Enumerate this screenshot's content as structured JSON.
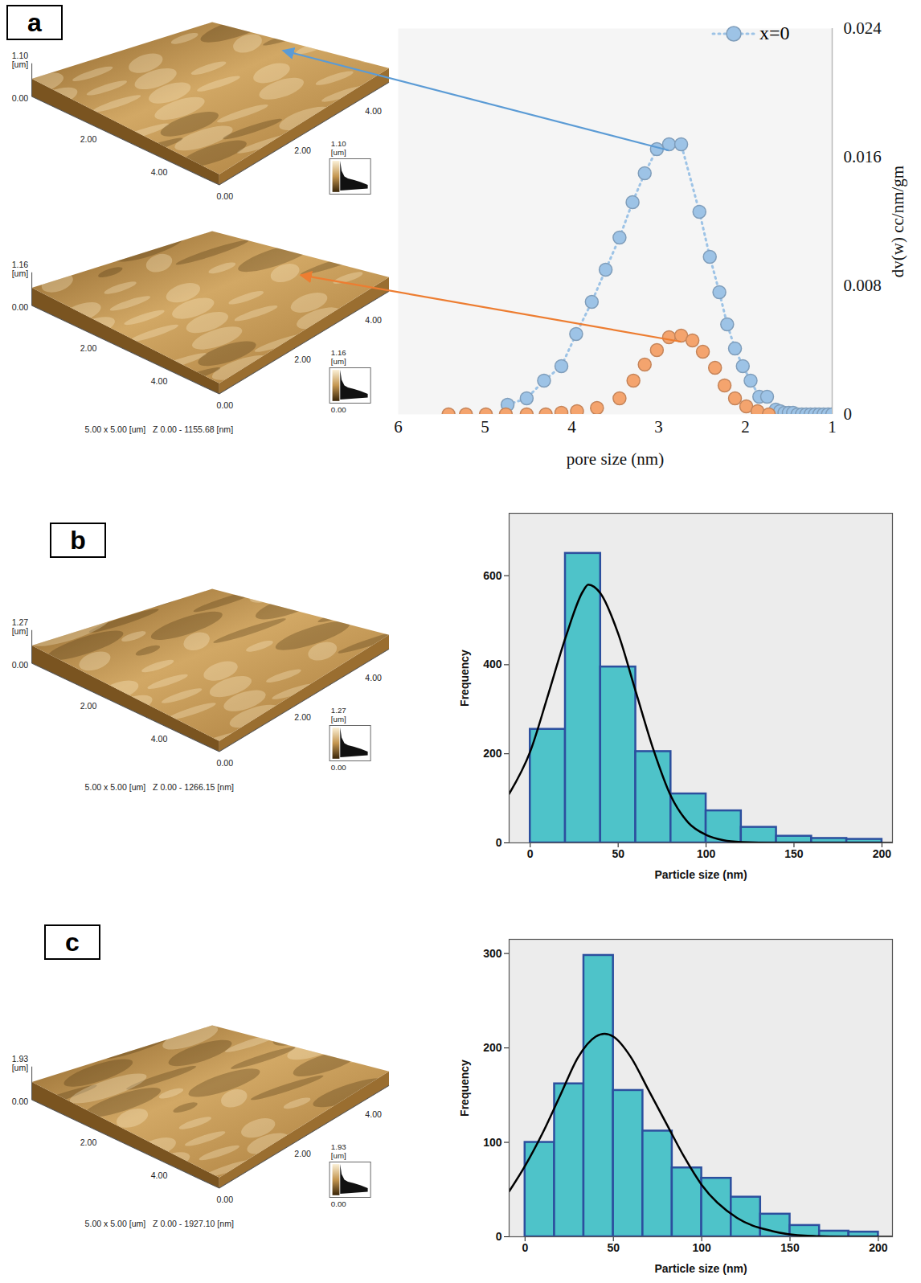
{
  "chart_data": [
    {
      "panel": "a",
      "type": "line",
      "x_label": "pore size (nm)",
      "y_label": "dv(w) cc/nm/gm",
      "xlim": [
        6,
        1
      ],
      "xticks": [
        6,
        5,
        4,
        3,
        2,
        1
      ],
      "ylim": [
        0,
        0.024
      ],
      "yticks": [
        0,
        0.008,
        0.016,
        0.024
      ],
      "legend": "top-right",
      "series": [
        {
          "name": "x=0",
          "color": "#9dc3e6",
          "marker": "circle",
          "line_style": "dotted",
          "x": [
            4.74,
            4.52,
            4.32,
            4.12,
            3.95,
            3.77,
            3.61,
            3.45,
            3.3,
            3.16,
            3.02,
            2.88,
            2.74,
            2.53,
            2.41,
            2.3,
            2.21,
            2.12,
            2.03,
            1.94,
            1.84,
            1.75,
            1.65,
            1.6,
            1.55,
            1.5,
            1.45,
            1.4,
            1.35,
            1.3,
            1.25,
            1.2,
            1.15,
            1.1,
            1.05,
            1.0
          ],
          "values": [
            0.0006,
            0.001,
            0.0021,
            0.003,
            0.005,
            0.007,
            0.009,
            0.011,
            0.0132,
            0.015,
            0.0165,
            0.0168,
            0.0168,
            0.0126,
            0.0098,
            0.0076,
            0.0056,
            0.0041,
            0.003,
            0.0021,
            0.0011,
            0.0011,
            0.0003,
            0.0002,
            0.0001,
            0.0001,
            0.0001,
            0,
            0,
            0,
            0,
            0,
            0,
            0,
            0,
            0
          ]
        },
        {
          "name": null,
          "color": "#f4a46e",
          "marker": "circle",
          "line_style": "none",
          "x": [
            5.42,
            5.22,
            4.99,
            4.76,
            4.52,
            4.3,
            4.12,
            3.94,
            3.71,
            3.45,
            3.29,
            3.16,
            3.02,
            2.88,
            2.74,
            2.61,
            2.49,
            2.35,
            2.24,
            2.12,
            1.99,
            1.86,
            1.73
          ],
          "values": [
            0,
            0,
            0,
            0,
            0,
            0,
            0.0001,
            0.0002,
            0.0004,
            0.001,
            0.0021,
            0.0031,
            0.004,
            0.0048,
            0.0049,
            0.0046,
            0.0039,
            0.0029,
            0.0018,
            0.001,
            0.0005,
            0.0002,
            0
          ]
        }
      ]
    },
    {
      "panel": "b",
      "type": "histogram",
      "x_label": "Particle size (nm)",
      "y_label": "Frequency",
      "xlim": [
        -12,
        206
      ],
      "xticks": [
        0,
        50,
        100,
        150,
        200
      ],
      "ylim": [
        0,
        740
      ],
      "yticks": [
        0,
        200,
        400,
        600
      ],
      "color": "#4ec3c9",
      "bins": [
        0,
        20,
        40,
        60,
        80,
        100,
        120,
        140,
        160,
        180,
        200
      ],
      "values": [
        255,
        650,
        395,
        205,
        110,
        72,
        35,
        15,
        10,
        8
      ],
      "curve": {
        "color": "#000000",
        "x": [
          -12,
          0,
          10,
          20,
          30,
          33,
          40,
          50,
          60,
          70,
          80,
          90,
          100,
          110,
          120,
          140,
          170,
          206
        ],
        "values": [
          110,
          205,
          330,
          460,
          565,
          580,
          560,
          470,
          340,
          210,
          105,
          45,
          18,
          6,
          2,
          0,
          0,
          0
        ]
      }
    },
    {
      "panel": "c",
      "type": "histogram",
      "x_label": "Particle size (nm)",
      "y_label": "Frequency",
      "xlim": [
        -9,
        208
      ],
      "xticks": [
        0,
        50,
        100,
        150,
        200
      ],
      "ylim": [
        0,
        315
      ],
      "yticks": [
        0,
        100,
        200,
        300
      ],
      "color": "#4ec3c9",
      "bins": [
        0,
        16.7,
        33.3,
        50,
        66.7,
        83.3,
        100,
        116.7,
        133.3,
        150,
        166.7,
        183.3,
        200
      ],
      "values": [
        100,
        162,
        298,
        155,
        112,
        73,
        62,
        42,
        24,
        12,
        6,
        5
      ],
      "curve": {
        "color": "#000000",
        "x": [
          -9,
          0,
          10,
          20,
          30,
          40,
          45,
          50,
          60,
          70,
          80,
          90,
          100,
          120,
          140,
          160,
          180,
          208
        ],
        "values": [
          48,
          75,
          110,
          150,
          190,
          212,
          215,
          212,
          190,
          155,
          120,
          85,
          55,
          20,
          6,
          1,
          0,
          0
        ]
      }
    }
  ],
  "afm_images": [
    {
      "panel": "a",
      "z_label": "1.10 [um]",
      "z_min": "0.00",
      "left_edge_ticks": [
        "2.00",
        "4.00"
      ],
      "corner": "0.00",
      "right_edge_ticks": [
        "2.00",
        "4.00"
      ],
      "colorbar_top": "1.10 [um]"
    },
    {
      "panel": "a",
      "z_label": "1.16 [um]",
      "z_min": "0.00",
      "left_edge_ticks": [
        "2.00",
        "4.00"
      ],
      "corner": "0.00",
      "right_edge_ticks": [
        "2.00",
        "4.00"
      ],
      "colorbar_top": "1.16 [um]",
      "colorbar_bottom": "0.00",
      "caption": "5.00 x 5.00 [um]   Z 0.00 - 1155.68 [nm]"
    },
    {
      "panel": "b",
      "z_label": "1.27 [um]",
      "z_min": "0.00",
      "left_edge_ticks": [
        "2.00",
        "4.00"
      ],
      "corner": "0.00",
      "right_edge_ticks": [
        "2.00",
        "4.00"
      ],
      "colorbar_top": "1.27 [um]",
      "colorbar_bottom": "0.00",
      "caption": "5.00 x 5.00 [um]   Z 0.00 - 1266.15 [nm]"
    },
    {
      "panel": "c",
      "z_label": "1.93 [um]",
      "z_min": "0.00",
      "left_edge_ticks": [
        "2.00",
        "4.00"
      ],
      "corner": "0.00",
      "right_edge_ticks": [
        "2.00",
        "4.00"
      ],
      "colorbar_top": "1.93 [um]",
      "colorbar_bottom": "0.00",
      "caption": "5.00 x 5.00 [um]   Z 0.00 - 1927.10 [nm]"
    }
  ]
}
